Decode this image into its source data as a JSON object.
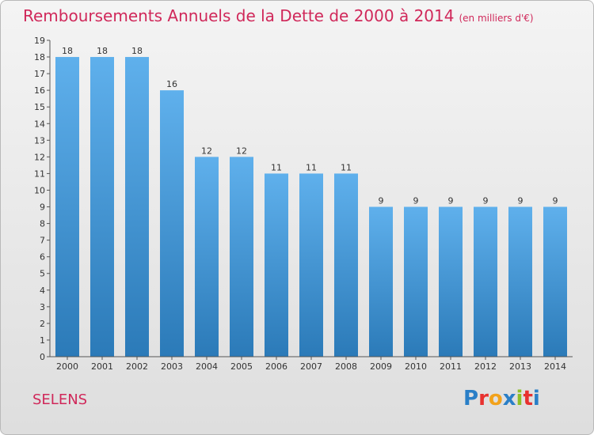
{
  "header": {
    "title": "Remboursements Annuels de la Dette de 2000 à 2014",
    "subtitle": "(en milliers d'€)"
  },
  "commune": "SELENS",
  "logo": {
    "text": "Proxiti",
    "colors": [
      "#2a7fc7",
      "#e8312f",
      "#f2a21b",
      "#2a7fc7",
      "#8fbf26",
      "#e8312f",
      "#2a7fc7"
    ]
  },
  "colors": {
    "bar_light": "#5fb0ec",
    "bar_dark": "#2b7ab8",
    "title": "#d0285a"
  },
  "chart_data": {
    "type": "bar",
    "title": "Remboursements Annuels de la Dette de 2000 à 2014",
    "categories": [
      "2000",
      "2001",
      "2002",
      "2003",
      "2004",
      "2005",
      "2006",
      "2007",
      "2008",
      "2009",
      "2010",
      "2011",
      "2012",
      "2013",
      "2014"
    ],
    "values": [
      18,
      18,
      18,
      16,
      12,
      12,
      11,
      11,
      11,
      9,
      9,
      9,
      9,
      9,
      9
    ],
    "ylim": [
      0,
      19
    ],
    "yticks": [
      0,
      1,
      2,
      3,
      4,
      5,
      6,
      7,
      8,
      9,
      10,
      11,
      12,
      13,
      14,
      15,
      16,
      17,
      18,
      19
    ],
    "grid": false
  }
}
